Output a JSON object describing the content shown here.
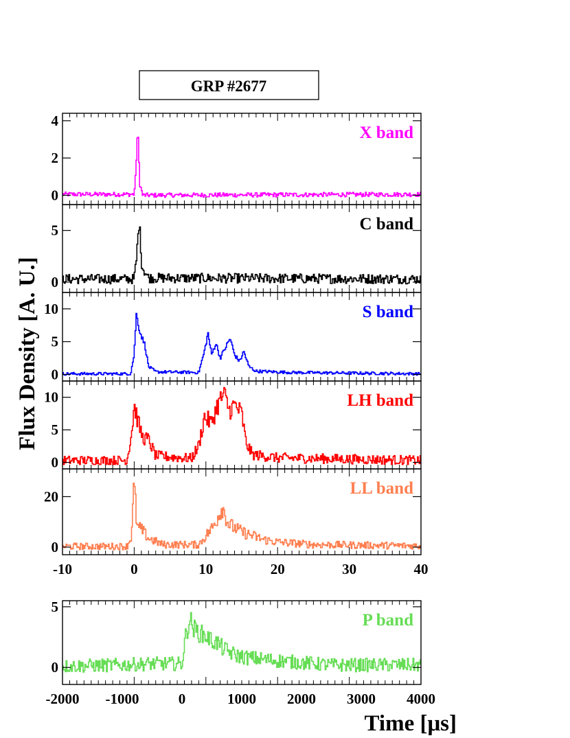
{
  "title": "GRP #2677",
  "ylabel": "Flux Density [A. U.]",
  "xlabel": "Time [μs]",
  "chart_data": [
    {
      "type": "line",
      "series": [
        {
          "name": "X band",
          "color": "#ff00ff",
          "points": [
            [
              -10,
              0.05
            ],
            [
              0,
              0.05
            ],
            [
              0.2,
              1.0
            ],
            [
              0.5,
              3.6
            ],
            [
              0.8,
              0.6
            ],
            [
              1.2,
              0.0
            ],
            [
              40,
              0.05
            ]
          ]
        }
      ],
      "xlim": [
        -10,
        40
      ],
      "ylim": [
        -0.5,
        4.4
      ],
      "yticks": [
        0,
        2,
        4
      ],
      "noise": 0.12,
      "label": "X band",
      "xticks": [],
      "xticklabels": []
    },
    {
      "type": "line",
      "series": [
        {
          "name": "C band",
          "color": "#000000",
          "points": [
            [
              -10,
              0.3
            ],
            [
              0,
              0.3
            ],
            [
              0.3,
              2.0
            ],
            [
              0.7,
              5.9
            ],
            [
              1.1,
              1.5
            ],
            [
              2,
              0.4
            ],
            [
              40,
              0.3
            ]
          ]
        }
      ],
      "xlim": [
        -10,
        40
      ],
      "ylim": [
        -1.0,
        7.5
      ],
      "yticks": [
        0,
        5
      ],
      "noise": 0.45,
      "label": "C band",
      "xticks": [],
      "xticklabels": []
    },
    {
      "type": "line",
      "series": [
        {
          "name": "S band",
          "color": "#0000ff",
          "points": [
            [
              -10,
              0.1
            ],
            [
              -0.5,
              0.1
            ],
            [
              0,
              3
            ],
            [
              0.3,
              9.2
            ],
            [
              0.8,
              6.5
            ],
            [
              1.5,
              4.5
            ],
            [
              2,
              1.2
            ],
            [
              3,
              0.4
            ],
            [
              9,
              0.3
            ],
            [
              9.8,
              3.5
            ],
            [
              10.3,
              6.3
            ],
            [
              10.8,
              3.0
            ],
            [
              11.4,
              4.8
            ],
            [
              12,
              2.5
            ],
            [
              12.6,
              3.8
            ],
            [
              13.4,
              5.5
            ],
            [
              14,
              3.0
            ],
            [
              14.7,
              2.0
            ],
            [
              15.3,
              3.5
            ],
            [
              16,
              1.2
            ],
            [
              17,
              0.5
            ],
            [
              22,
              0.3
            ],
            [
              40,
              0.1
            ]
          ]
        }
      ],
      "xlim": [
        -10,
        40
      ],
      "ylim": [
        -1.0,
        12.5
      ],
      "yticks": [
        0,
        5,
        10
      ],
      "noise": 0.22,
      "label": "S band",
      "xticks": [],
      "xticklabels": []
    },
    {
      "type": "line",
      "series": [
        {
          "name": "LH band",
          "color": "#ff0000",
          "points": [
            [
              -10,
              0.3
            ],
            [
              -1,
              0.3
            ],
            [
              -0.3,
              5
            ],
            [
              0,
              8.8
            ],
            [
              0.6,
              6
            ],
            [
              1.2,
              3.8
            ],
            [
              2,
              3.5
            ],
            [
              3,
              1.0
            ],
            [
              8,
              0.6
            ],
            [
              9,
              2.5
            ],
            [
              9.8,
              7
            ],
            [
              10.8,
              6
            ],
            [
              11.5,
              8.5
            ],
            [
              12.5,
              10.5
            ],
            [
              13.3,
              8
            ],
            [
              14,
              8.8
            ],
            [
              15,
              7.5
            ],
            [
              15.6,
              3
            ],
            [
              16.5,
              1.2
            ],
            [
              20,
              0.7
            ],
            [
              40,
              0.3
            ]
          ]
        }
      ],
      "xlim": [
        -10,
        40
      ],
      "ylim": [
        -1.0,
        12.5
      ],
      "yticks": [
        0,
        5,
        10
      ],
      "noise": 0.7,
      "label": "LH band",
      "xticks": [],
      "xticklabels": []
    },
    {
      "type": "line",
      "series": [
        {
          "name": "LL band",
          "color": "#ff7f50",
          "points": [
            [
              -10,
              0.3
            ],
            [
              -1,
              0.3
            ],
            [
              -0.4,
              4
            ],
            [
              0,
              25
            ],
            [
              0.4,
              8
            ],
            [
              1,
              7
            ],
            [
              2,
              3.5
            ],
            [
              4,
              1.0
            ],
            [
              9,
              1.0
            ],
            [
              11,
              8
            ],
            [
              12.3,
              16
            ],
            [
              13.2,
              9
            ],
            [
              15,
              6
            ],
            [
              16,
              5
            ],
            [
              18,
              3
            ],
            [
              20,
              2
            ],
            [
              25,
              1
            ],
            [
              40,
              0.5
            ]
          ]
        }
      ],
      "xlim": [
        -10,
        40
      ],
      "ylim": [
        -3,
        31
      ],
      "yticks": [
        0,
        20
      ],
      "noise": 1.3,
      "label": "LL band",
      "xticks": [
        -10,
        0,
        10,
        20,
        30,
        40
      ],
      "xticklabels": [
        "-10",
        "0",
        "10",
        "20",
        "30",
        "40"
      ]
    },
    {
      "type": "line",
      "series": [
        {
          "name": "P band",
          "color": "#66dd55",
          "points": [
            [
              -2000,
              0.1
            ],
            [
              -1000,
              0.2
            ],
            [
              -600,
              0.3
            ],
            [
              0,
              0.3
            ],
            [
              60,
              2.5
            ],
            [
              130,
              4.0
            ],
            [
              200,
              3.2
            ],
            [
              300,
              2.8
            ],
            [
              400,
              2.6
            ],
            [
              500,
              2.2
            ],
            [
              600,
              2.0
            ],
            [
              700,
              1.5
            ],
            [
              900,
              1.0
            ],
            [
              1100,
              0.8
            ],
            [
              1500,
              0.6
            ],
            [
              2000,
              0.4
            ],
            [
              2500,
              0.2
            ],
            [
              3000,
              0.2
            ],
            [
              4000,
              0.2
            ]
          ]
        }
      ],
      "xlim": [
        -2000,
        4000
      ],
      "ylim": [
        -1.4,
        5.5
      ],
      "yticks": [
        0,
        5
      ],
      "noise": 0.55,
      "label": "P band",
      "xticks": [
        -2000,
        -1000,
        0,
        1000,
        2000,
        3000,
        4000
      ],
      "xticklabels": [
        "-2000",
        "-1000",
        "0",
        "1000",
        "2000",
        "3000",
        "4000"
      ]
    }
  ]
}
